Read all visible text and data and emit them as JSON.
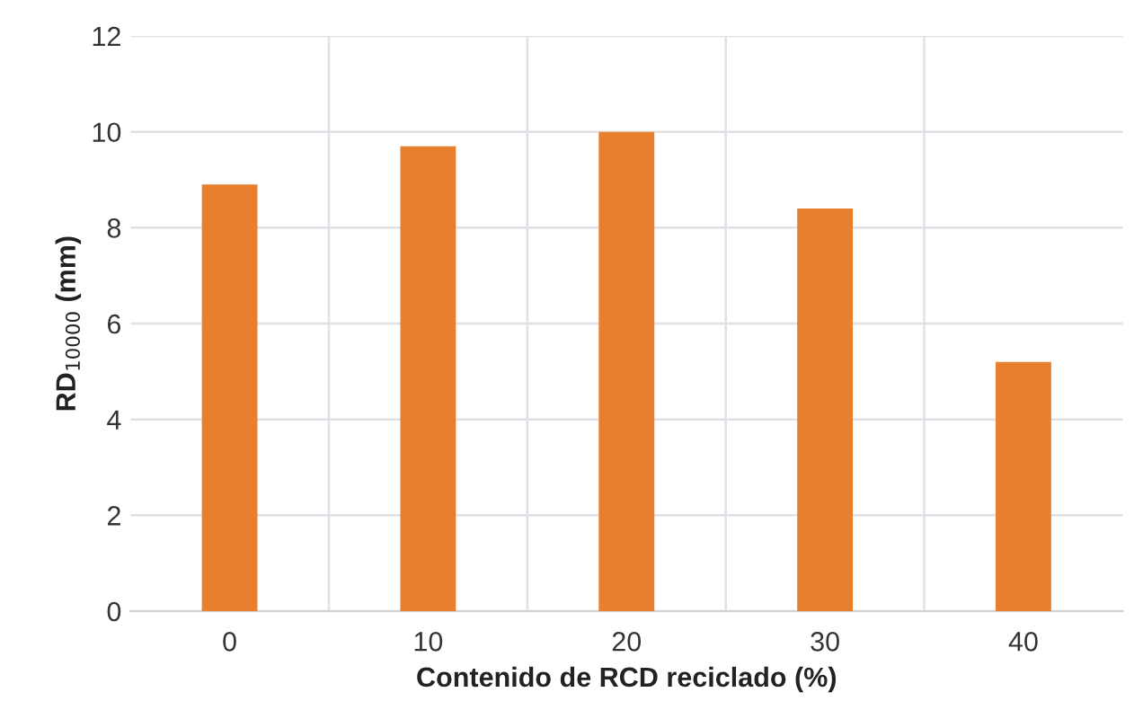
{
  "chart_data": {
    "type": "bar",
    "categories": [
      "0",
      "10",
      "20",
      "30",
      "40"
    ],
    "values": [
      8.9,
      9.7,
      10.0,
      8.4,
      5.2
    ],
    "color": "#e87f2e",
    "xlabel": "Contenido de RCD reciclado (%)",
    "ylabel": "RD$_{10000}$ (mm)",
    "ylim": [
      0,
      12
    ],
    "yticks": [
      0,
      2,
      4,
      6,
      8,
      10,
      12
    ],
    "grid": true
  }
}
